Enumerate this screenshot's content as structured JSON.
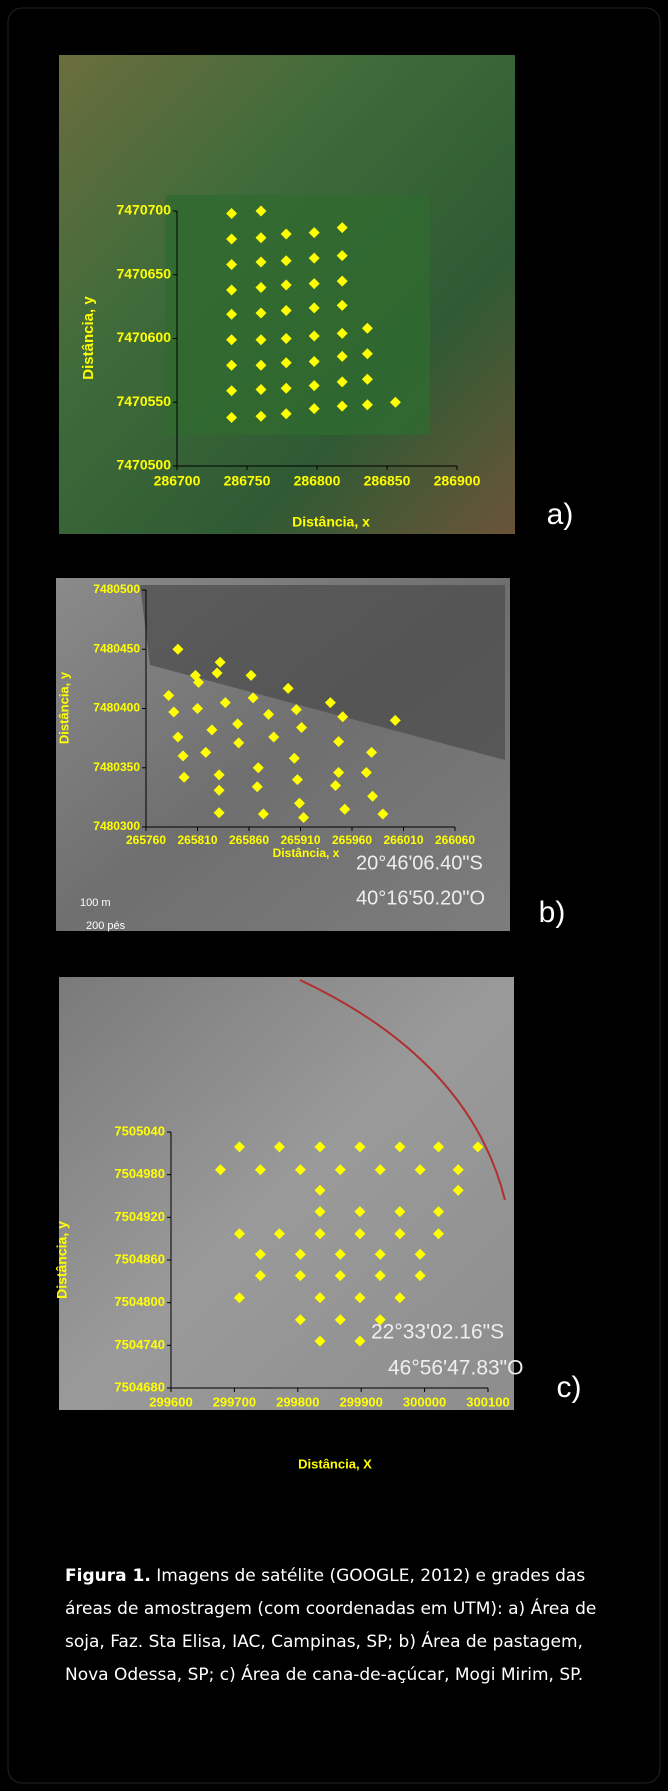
{
  "chart_data": [
    {
      "type": "scatter",
      "panel_label": "a)",
      "xlabel": "Distância, x",
      "ylabel": "Distância, y",
      "color": "#ffff00",
      "xlim": [
        286700,
        286900
      ],
      "xticks": [
        286700,
        286750,
        286800,
        286850,
        286900
      ],
      "ylim": [
        7470500,
        7470700
      ],
      "yticks": [
        7470500,
        7470550,
        7470600,
        7470650,
        7470700
      ],
      "x": [
        286739,
        286739,
        286739,
        286739,
        286739,
        286739,
        286739,
        286739,
        286739,
        286760,
        286760,
        286760,
        286760,
        286760,
        286760,
        286760,
        286760,
        286760,
        286778,
        286778,
        286778,
        286778,
        286778,
        286778,
        286778,
        286778,
        286798,
        286798,
        286798,
        286798,
        286798,
        286798,
        286798,
        286798,
        286818,
        286818,
        286818,
        286818,
        286818,
        286818,
        286818,
        286818,
        286836,
        286836,
        286836,
        286836,
        286856
      ],
      "y": [
        7470698,
        7470678,
        7470658,
        7470638,
        7470619,
        7470599,
        7470579,
        7470559,
        7470538,
        7470700,
        7470679,
        7470660,
        7470640,
        7470620,
        7470599,
        7470579,
        7470560,
        7470539,
        7470682,
        7470661,
        7470642,
        7470622,
        7470600,
        7470581,
        7470561,
        7470541,
        7470683,
        7470663,
        7470643,
        7470624,
        7470602,
        7470582,
        7470563,
        7470545,
        7470687,
        7470665,
        7470645,
        7470626,
        7470604,
        7470586,
        7470566,
        7470547,
        7470608,
        7470588,
        7470568,
        7470548,
        7470550
      ],
      "annotations": []
    },
    {
      "type": "scatter",
      "panel_label": "b)",
      "xlabel": "Distância, x",
      "ylabel": "Distância, y",
      "color": "#ffff00",
      "xlim": [
        265760,
        266060
      ],
      "xticks": [
        265760,
        265810,
        265860,
        265910,
        265960,
        266010,
        266060
      ],
      "ylim": [
        7480300,
        7480500
      ],
      "yticks": [
        7480300,
        7480350,
        7480400,
        7480450,
        7480500
      ],
      "x": [
        265791,
        265782,
        265787,
        265808,
        265811,
        265810,
        265829,
        265832,
        265791,
        265796,
        265797,
        265824,
        265818,
        265831,
        265831,
        265831,
        265837,
        265849,
        265850,
        265862,
        265864,
        265868,
        265869,
        265874,
        265879,
        265884,
        265898,
        265906,
        265911,
        265904,
        265907,
        265909,
        265913,
        265939,
        265951,
        265947,
        265947,
        265944,
        265953,
        265979,
        265974,
        265980,
        265990,
        266002
      ],
      "y": [
        7480450,
        7480411,
        7480397,
        7480428,
        7480422,
        7480400,
        7480430,
        7480439,
        7480376,
        7480360,
        7480342,
        7480382,
        7480363,
        7480344,
        7480331,
        7480312,
        7480405,
        7480387,
        7480371,
        7480428,
        7480409,
        7480334,
        7480350,
        7480311,
        7480395,
        7480376,
        7480417,
        7480399,
        7480384,
        7480358,
        7480340,
        7480320,
        7480308,
        7480405,
        7480393,
        7480372,
        7480346,
        7480335,
        7480315,
        7480363,
        7480346,
        7480326,
        7480311,
        7480390
      ],
      "annotations": [
        "20°46'06.40\"S",
        "40°16'50.20\"O",
        "100 m",
        "200 pés"
      ]
    },
    {
      "type": "scatter",
      "panel_label": "c)",
      "xlabel": "Distância, X",
      "ylabel": "Distância, y",
      "color": "#ffff00",
      "xlim": [
        299600,
        300100
      ],
      "xticks": [
        299600,
        299700,
        299800,
        299900,
        300000,
        300100
      ],
      "ylim": [
        7504680,
        7505040
      ],
      "yticks": [
        7504680,
        7504740,
        7504800,
        7504860,
        7504920,
        7504980,
        7505040
      ],
      "x": [
        299708,
        299771,
        299835,
        299898,
        299961,
        300022,
        300084,
        299678,
        299741,
        299804,
        299867,
        299930,
        299993,
        300053,
        299835,
        300053,
        299835,
        299898,
        299961,
        300022,
        299708,
        299771,
        299835,
        299898,
        299961,
        300022,
        299741,
        299804,
        299867,
        299930,
        299993,
        299741,
        299804,
        299867,
        299930,
        299993,
        299708,
        299835,
        299898,
        299961,
        299804,
        299867,
        299930,
        299835,
        299898
      ],
      "y": [
        7505019,
        7505019,
        7505019,
        7505019,
        7505019,
        7505019,
        7505019,
        7504987,
        7504987,
        7504987,
        7504987,
        7504987,
        7504987,
        7504987,
        7504958,
        7504958,
        7504928,
        7504928,
        7504928,
        7504928,
        7504897,
        7504897,
        7504897,
        7504897,
        7504897,
        7504897,
        7504868,
        7504868,
        7504868,
        7504868,
        7504868,
        7504838,
        7504838,
        7504838,
        7504838,
        7504838,
        7504807,
        7504807,
        7504807,
        7504807,
        7504776,
        7504776,
        7504776,
        7504746,
        7504746
      ],
      "annotations": [
        "22°33'02.16\"S",
        "46°56'47.83\"O"
      ]
    }
  ],
  "caption": {
    "label": "Figura 1.",
    "text": "Imagens de satélite (GOOGLE, 2012) e grades das áreas de amostragem (com coordenadas em UTM): a) Área de soja, Faz. Sta Elisa, IAC, Campinas, SP; b) Área de pastagem, Nova Odessa, SP; c) Área de cana-de-açúcar, Mogi Mirim, SP."
  }
}
